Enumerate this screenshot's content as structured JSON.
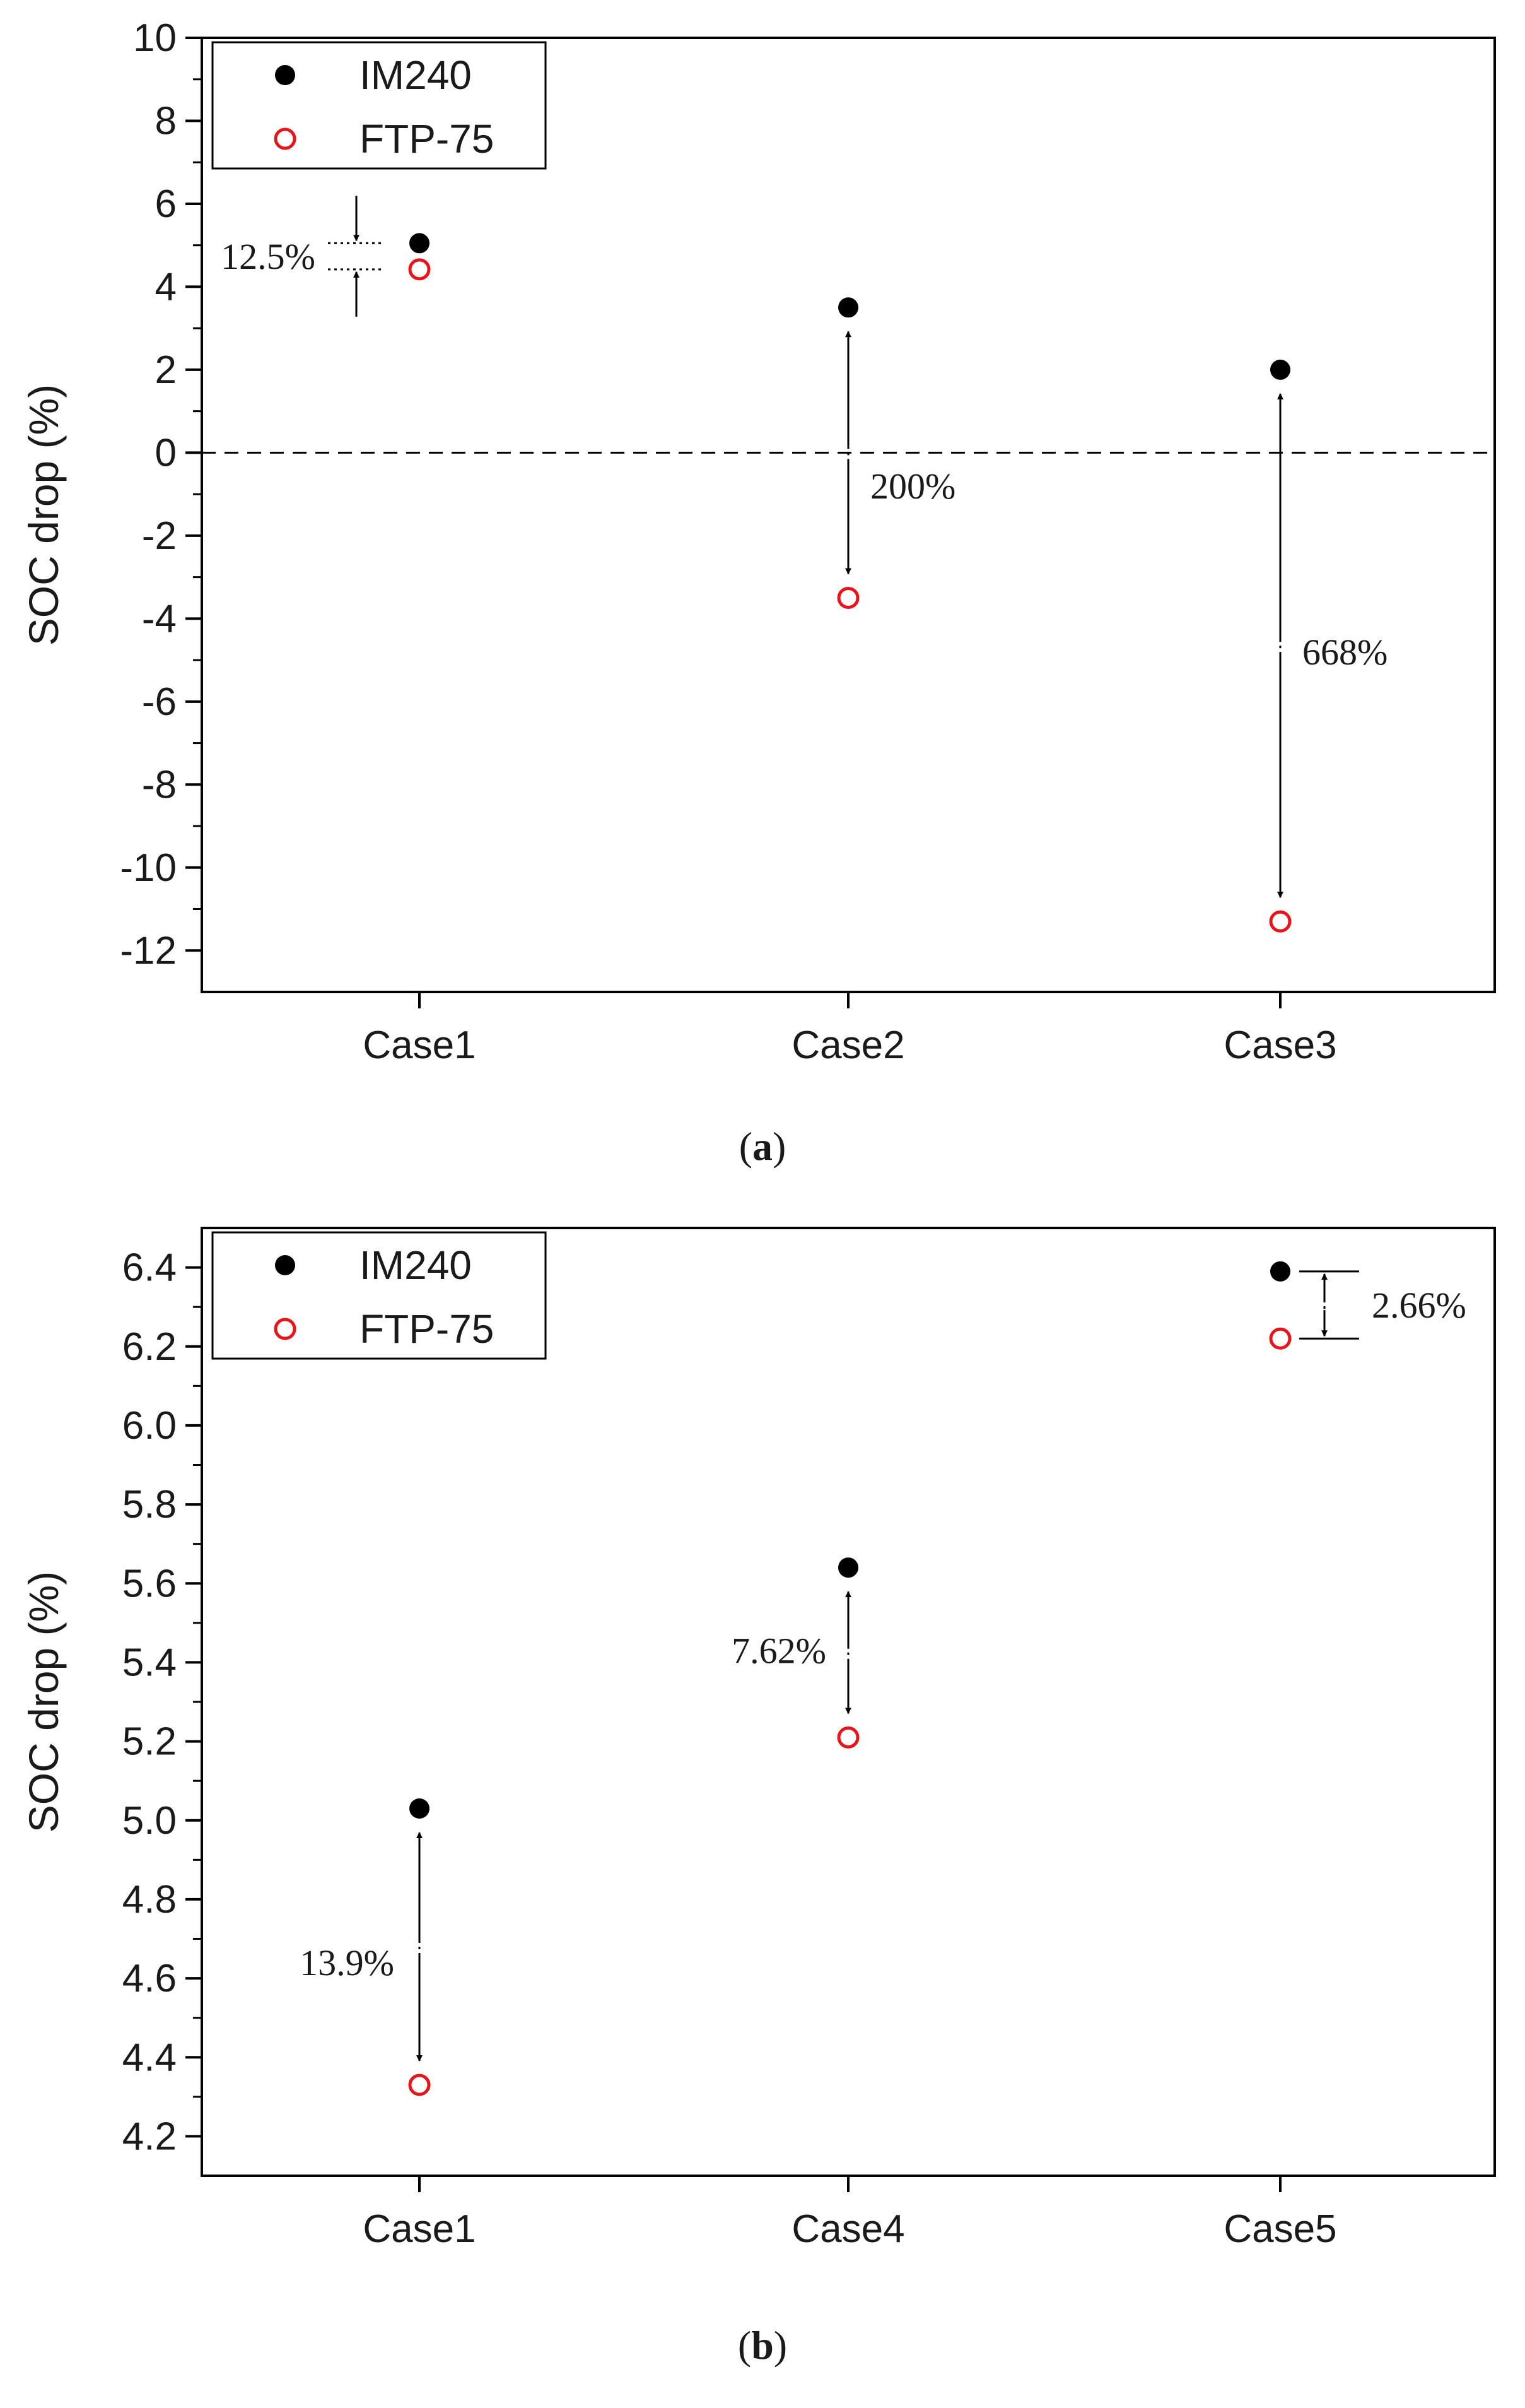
{
  "chart_data": [
    {
      "type": "scatter",
      "panel_label": "a",
      "xlabel": "",
      "ylabel": "SOC drop (%)",
      "categories": [
        "Case1",
        "Case2",
        "Case3"
      ],
      "ylim": [
        -13,
        10
      ],
      "yticks": [
        10,
        8,
        6,
        4,
        2,
        0,
        -2,
        -4,
        -6,
        -8,
        -10,
        -12
      ],
      "ytick_labels": [
        "10",
        "8",
        "6",
        "4",
        "2",
        "0",
        "-2",
        "-4",
        "-6",
        "-8",
        "-10",
        "-12"
      ],
      "zero_line": true,
      "legend": {
        "position": "top-left"
      },
      "series": [
        {
          "name": "IM240",
          "marker": "filled-circle",
          "color": "#000000",
          "values": [
            5.05,
            3.5,
            2.0
          ]
        },
        {
          "name": "FTP-75",
          "marker": "open-circle",
          "color": "#e8141a",
          "values": [
            4.42,
            -3.5,
            -11.3
          ]
        }
      ],
      "annotations": [
        {
          "category": "Case1",
          "text": "12.5%",
          "style": "inward"
        },
        {
          "category": "Case2",
          "text": "200%",
          "style": "between"
        },
        {
          "category": "Case3",
          "text": "668%",
          "style": "between"
        }
      ],
      "caption": {
        "open": "(",
        "label": "a",
        "close": ")"
      }
    },
    {
      "type": "scatter",
      "panel_label": "b",
      "xlabel": "",
      "ylabel": "SOC drop (%)",
      "categories": [
        "Case1",
        "Case4",
        "Case5"
      ],
      "ylim": [
        4.1,
        6.5
      ],
      "yticks": [
        6.4,
        6.2,
        6.0,
        5.8,
        5.6,
        5.4,
        5.2,
        5.0,
        4.8,
        4.6,
        4.4,
        4.2
      ],
      "ytick_labels": [
        "6.4",
        "6.2",
        "6.0",
        "5.8",
        "5.6",
        "5.4",
        "5.2",
        "5.0",
        "4.8",
        "4.6",
        "4.4",
        "4.2"
      ],
      "zero_line": false,
      "legend": {
        "position": "top-left"
      },
      "series": [
        {
          "name": "IM240",
          "marker": "filled-circle",
          "color": "#000000",
          "values": [
            5.03,
            5.64,
            6.39
          ]
        },
        {
          "name": "FTP-75",
          "marker": "open-circle",
          "color": "#e8141a",
          "values": [
            4.33,
            5.21,
            6.22
          ]
        }
      ],
      "annotations": [
        {
          "category": "Case1",
          "text": "13.9%",
          "style": "between"
        },
        {
          "category": "Case4",
          "text": "7.62%",
          "style": "between"
        },
        {
          "category": "Case5",
          "text": "2.66%",
          "style": "between-right"
        }
      ],
      "caption": {
        "open": "(",
        "label": "b",
        "close": ")"
      }
    }
  ]
}
